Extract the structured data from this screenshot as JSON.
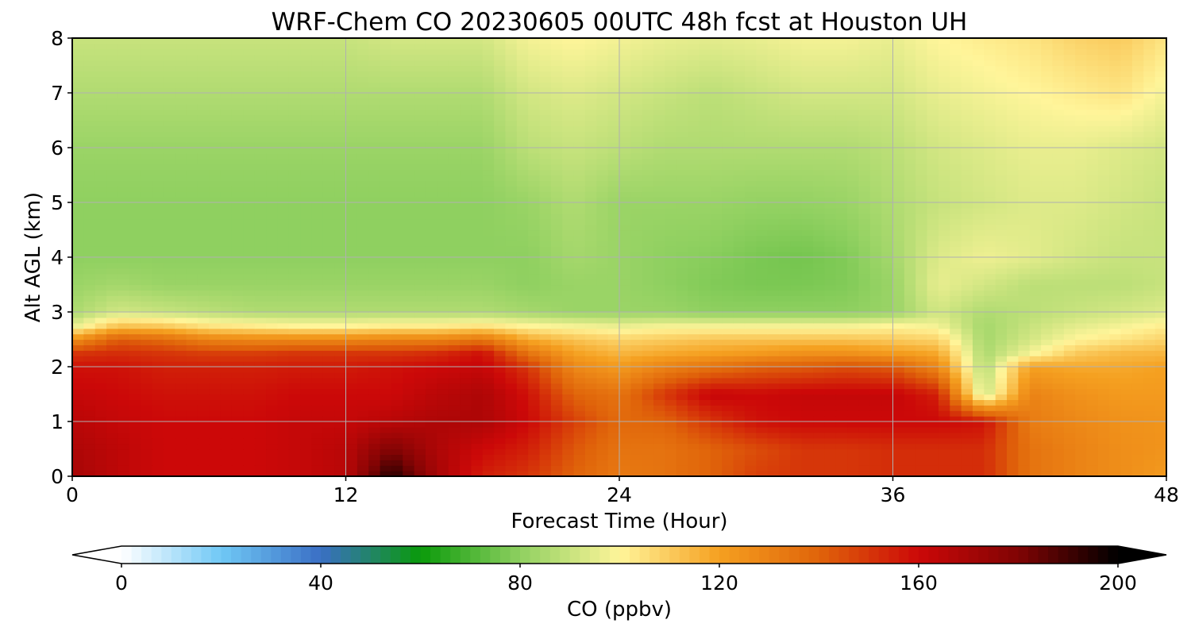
{
  "chart_data": {
    "type": "heatmap",
    "title": "WRF-Chem CO  20230605 00UTC 48h fcst at Houston UH",
    "xlabel": "Forecast Time (Hour)",
    "ylabel": "Alt AGL (km)",
    "xlim": [
      0,
      48
    ],
    "ylim": [
      0,
      8
    ],
    "x_ticks": [
      0,
      12,
      24,
      36,
      48
    ],
    "y_ticks": [
      0,
      1,
      2,
      3,
      4,
      5,
      6,
      7,
      8
    ],
    "grid": true,
    "colorbar": {
      "label": "CO  (ppbv)",
      "min": 0,
      "max": 200,
      "ticks": [
        0,
        40,
        80,
        120,
        160,
        200
      ],
      "extend": "both",
      "colors": [
        "#ffffff",
        "#70c8f5",
        "#3a6fc5",
        "#0a9a0a",
        "#8fd060",
        "#fff59a",
        "#f5a020",
        "#e0640a",
        "#cc0808",
        "#800404",
        "#000000"
      ]
    },
    "x": [
      0,
      2,
      4,
      6,
      8,
      10,
      12,
      14,
      16,
      18,
      20,
      22,
      24,
      26,
      28,
      30,
      32,
      34,
      36,
      38,
      40,
      42,
      44,
      46,
      48
    ],
    "y": [
      0,
      0.5,
      1,
      1.5,
      2,
      2.25,
      2.5,
      2.75,
      3,
      3.5,
      4,
      5,
      6,
      7,
      8
    ],
    "z": [
      [
        170,
        164,
        160,
        160,
        160,
        162,
        165,
        195,
        170,
        155,
        150,
        140,
        133,
        135,
        140,
        148,
        150,
        150,
        152,
        152,
        152,
        135,
        130,
        126,
        122
      ],
      [
        168,
        164,
        160,
        160,
        160,
        162,
        165,
        180,
        168,
        160,
        155,
        143,
        135,
        135,
        140,
        145,
        150,
        150,
        152,
        152,
        152,
        135,
        130,
        126,
        124
      ],
      [
        165,
        162,
        160,
        160,
        160,
        162,
        162,
        165,
        168,
        168,
        160,
        148,
        138,
        140,
        150,
        158,
        160,
        160,
        160,
        160,
        158,
        132,
        128,
        125,
        124
      ],
      [
        162,
        160,
        158,
        158,
        158,
        160,
        160,
        160,
        165,
        168,
        158,
        140,
        135,
        150,
        162,
        160,
        162,
        162,
        162,
        155,
        90,
        130,
        125,
        122,
        122
      ],
      [
        158,
        158,
        155,
        155,
        155,
        156,
        156,
        158,
        160,
        162,
        150,
        128,
        122,
        130,
        135,
        140,
        142,
        145,
        142,
        128,
        86,
        120,
        118,
        118,
        120
      ],
      [
        150,
        152,
        150,
        148,
        148,
        150,
        150,
        150,
        152,
        158,
        135,
        120,
        115,
        118,
        120,
        122,
        125,
        125,
        122,
        118,
        85,
        98,
        110,
        114,
        115
      ],
      [
        125,
        142,
        138,
        130,
        128,
        128,
        128,
        130,
        130,
        135,
        118,
        112,
        108,
        110,
        112,
        112,
        112,
        112,
        110,
        108,
        84,
        92,
        100,
        104,
        108
      ],
      [
        95,
        112,
        110,
        104,
        102,
        100,
        100,
        102,
        102,
        104,
        100,
        98,
        96,
        98,
        98,
        98,
        98,
        98,
        100,
        98,
        84,
        90,
        95,
        98,
        102
      ],
      [
        85,
        92,
        90,
        88,
        86,
        86,
        86,
        86,
        86,
        86,
        84,
        82,
        82,
        82,
        80,
        80,
        80,
        80,
        82,
        92,
        86,
        88,
        90,
        92,
        94
      ],
      [
        82,
        84,
        82,
        82,
        82,
        82,
        82,
        82,
        82,
        82,
        80,
        82,
        82,
        80,
        78,
        77,
        77,
        78,
        82,
        96,
        92,
        88,
        88,
        88,
        90
      ],
      [
        80,
        80,
        80,
        80,
        80,
        80,
        80,
        80,
        80,
        80,
        80,
        84,
        82,
        80,
        79,
        77,
        76,
        78,
        84,
        94,
        97,
        95,
        92,
        90,
        90
      ],
      [
        80,
        80,
        80,
        80,
        80,
        80,
        80,
        80,
        80,
        80,
        82,
        86,
        82,
        82,
        82,
        81,
        81,
        82,
        86,
        90,
        92,
        94,
        94,
        92,
        90
      ],
      [
        82,
        82,
        82,
        82,
        82,
        82,
        82,
        82,
        82,
        82,
        88,
        90,
        88,
        86,
        86,
        86,
        86,
        86,
        88,
        92,
        94,
        96,
        96,
        94,
        92
      ],
      [
        86,
        86,
        86,
        86,
        86,
        86,
        86,
        86,
        86,
        86,
        92,
        94,
        92,
        90,
        88,
        90,
        92,
        92,
        92,
        96,
        98,
        100,
        102,
        104,
        98
      ],
      [
        90,
        90,
        90,
        90,
        90,
        90,
        90,
        92,
        92,
        92,
        98,
        100,
        98,
        96,
        95,
        96,
        98,
        98,
        96,
        100,
        102,
        104,
        108,
        110,
        104
      ]
    ]
  }
}
